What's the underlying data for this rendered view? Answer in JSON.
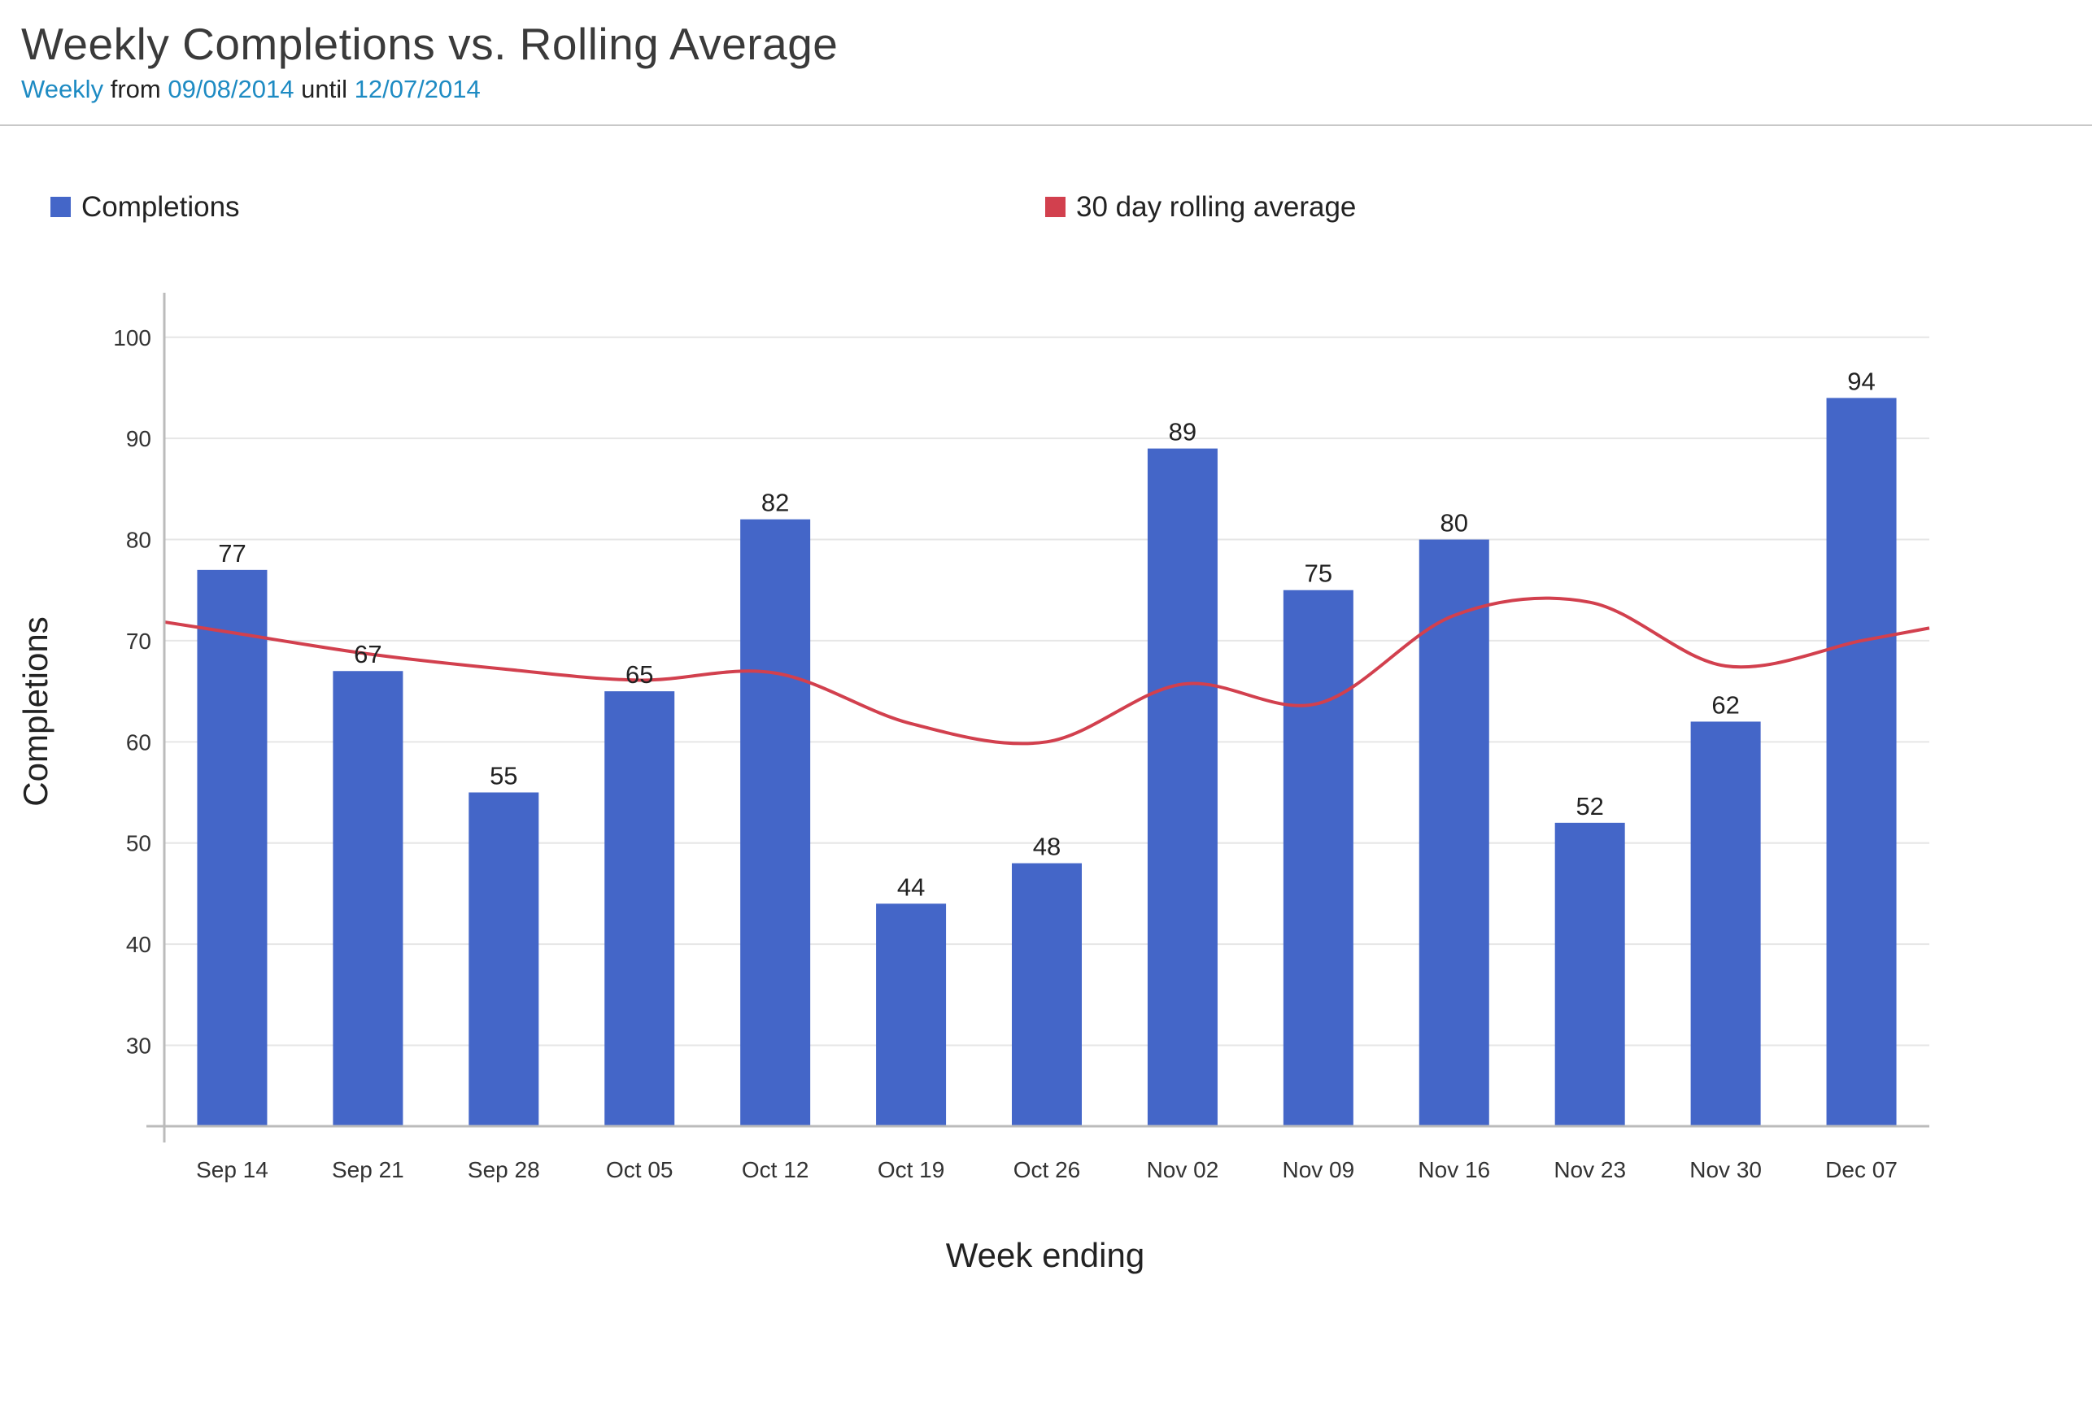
{
  "header": {
    "title": "Weekly Completions vs. Rolling Average",
    "subtitle": {
      "period": "Weekly",
      "from_word": "from",
      "start_date": "09/08/2014",
      "until_word": "until",
      "end_date": "12/07/2014"
    }
  },
  "colors": {
    "bar": "#4466c8",
    "line": "#d2404e",
    "grid": "#e6e6e6",
    "axis": "#bbbbbb",
    "link": "#1e8bc3"
  },
  "chart_data": {
    "type": "bar",
    "title": "Weekly Completions vs. Rolling Average",
    "xlabel": "Week ending",
    "ylabel": "Completions",
    "ylim": [
      22,
      104
    ],
    "yticks": [
      30,
      40,
      50,
      60,
      70,
      80,
      90,
      100
    ],
    "grid": true,
    "legend_position": "top",
    "categories": [
      "Sep 14",
      "Sep 21",
      "Sep 28",
      "Oct 05",
      "Oct 12",
      "Oct 19",
      "Oct 26",
      "Nov 02",
      "Nov 09",
      "Nov 16",
      "Nov 23",
      "Nov 30",
      "Dec 07"
    ],
    "series": [
      {
        "name": "Completions",
        "type": "bar",
        "values": [
          77,
          67,
          55,
          65,
          82,
          44,
          48,
          89,
          75,
          80,
          52,
          62,
          94
        ],
        "data_labels": true
      },
      {
        "name": "30 day rolling average",
        "type": "line",
        "smooth": true,
        "values": [
          70.8,
          68.7,
          67.2,
          66.1,
          66.8,
          61.8,
          60.0,
          65.7,
          63.8,
          72.5,
          73.8,
          67.5,
          70.0
        ]
      }
    ]
  }
}
